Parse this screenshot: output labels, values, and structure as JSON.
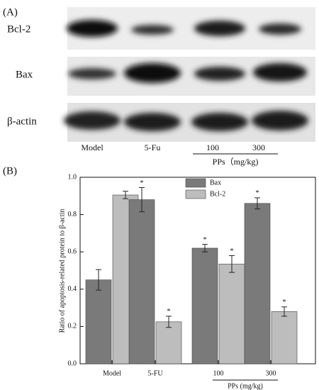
{
  "panel_a": {
    "label": "(A)",
    "rows": [
      "Bcl-2",
      "Bax",
      "β-actin"
    ],
    "lanes": [
      "Model",
      "5-Fu",
      "100",
      "300"
    ],
    "group_label": "PPs（mg/kg)"
  },
  "chart_data": {
    "type": "bar",
    "panel_label": "(B)",
    "y_label": "Ratio of apoptosis-related protein to β-actin",
    "categories": [
      "Model",
      "5-FU",
      "100",
      "300"
    ],
    "group_label": "PPs (mg/kg)",
    "series": [
      {
        "name": "Bax",
        "color": "#7a7a7a",
        "values": [
          0.45,
          0.88,
          0.62,
          0.86
        ],
        "errors": [
          0.055,
          0.065,
          0.02,
          0.03
        ],
        "significance": [
          null,
          "*",
          "*",
          "*"
        ]
      },
      {
        "name": "Bcl-2",
        "color": "#bdbdbd",
        "values": [
          0.905,
          0.225,
          0.535,
          0.28
        ],
        "errors": [
          0.02,
          0.03,
          0.045,
          0.025
        ],
        "significance": [
          null,
          "*",
          "*",
          "*"
        ]
      }
    ],
    "ylim": [
      0,
      1.0
    ],
    "yticks": [
      {
        "value": 0,
        "label": "0.0"
      },
      0.2,
      0.4,
      0.6,
      0.8,
      {
        "value": 1.0,
        "label": "1.0"
      }
    ],
    "legend": "top"
  }
}
